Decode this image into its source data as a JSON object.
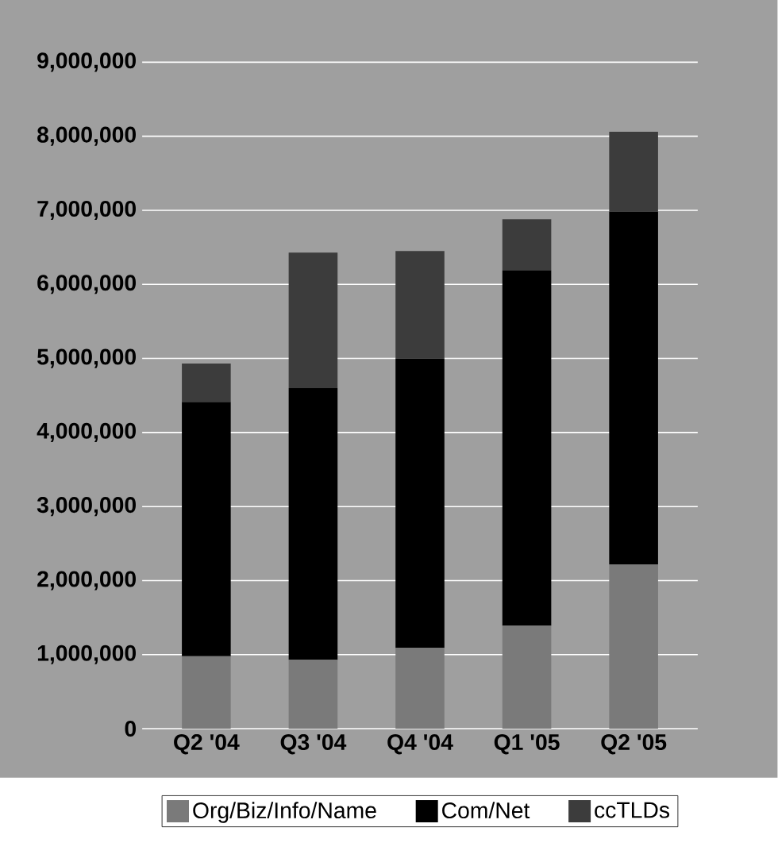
{
  "chart_data": {
    "type": "bar",
    "stacked": true,
    "categories": [
      "Q2 '04",
      "Q3 '04",
      "Q4 '04",
      "Q1 '05",
      "Q2 '05"
    ],
    "series": [
      {
        "name": "Org/Biz/Info/Name",
        "color": "#7a7a7a",
        "values": [
          980000,
          930000,
          1090000,
          1390000,
          2220000
        ]
      },
      {
        "name": "Com/Net",
        "color": "#000000",
        "values": [
          3430000,
          3670000,
          3910000,
          4800000,
          4760000
        ]
      },
      {
        "name": "ccTLDs",
        "color": "#3c3c3c",
        "values": [
          520000,
          1830000,
          1450000,
          690000,
          1080000
        ]
      }
    ],
    "ylim": [
      0,
      9000000
    ],
    "yticks": [
      {
        "value": 0,
        "label": "0"
      },
      {
        "value": 1000000,
        "label": "1,000,000"
      },
      {
        "value": 2000000,
        "label": "2,000,000"
      },
      {
        "value": 3000000,
        "label": "3,000,000"
      },
      {
        "value": 4000000,
        "label": "4,000,000"
      },
      {
        "value": 5000000,
        "label": "5,000,000"
      },
      {
        "value": 6000000,
        "label": "6,000,000"
      },
      {
        "value": 7000000,
        "label": "7,000,000"
      },
      {
        "value": 8000000,
        "label": "8,000,000"
      },
      {
        "value": 9000000,
        "label": "9,000,000"
      }
    ],
    "grid": "y",
    "legend": "bottom"
  }
}
